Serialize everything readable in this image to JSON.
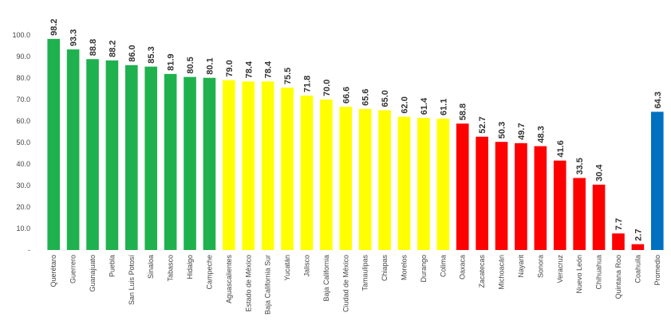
{
  "chart_data": {
    "type": "bar",
    "title": "",
    "xlabel": "",
    "ylabel": "",
    "ylim": [
      0,
      100
    ],
    "yticks": [
      0,
      10,
      20,
      30,
      40,
      50,
      60,
      70,
      80,
      90,
      100
    ],
    "ytick_labels": [
      "-",
      "10.0",
      "20.0",
      "30.0",
      "40.0",
      "50.0",
      "60.0",
      "70.0",
      "80.0",
      "90.0",
      "100.0"
    ],
    "grid": false,
    "legend": "none",
    "colors": {
      "green": "#1fb14e",
      "yellow": "#ffff00",
      "red": "#ff0000",
      "blue": "#0070c0"
    },
    "categories": [
      "Querétaro",
      "Guerrero",
      "Guanajuato",
      "Puebla",
      "San Luis Potosí",
      "Sinaloa",
      "Tabasco",
      "Hidalgo",
      "Campeche",
      "Aguascalientes",
      "Estado de México",
      "Baja California Sur",
      "Yucatán",
      "Jalisco",
      "Baja California",
      "Ciudad de México",
      "Tamaulipas",
      "Chiapas",
      "Morelos",
      "Durango",
      "Colima",
      "Oaxaca",
      "Zacatecas",
      "Michoacán",
      "Nayarit",
      "Sonora",
      "Veracruz",
      "Nuevo León",
      "Chihuahua",
      "Quintana Roo",
      "Coahuila",
      "Promedio"
    ],
    "values": [
      98.2,
      93.3,
      88.8,
      88.2,
      86.0,
      85.3,
      81.9,
      80.5,
      80.1,
      79.0,
      78.4,
      78.4,
      75.5,
      71.8,
      70.0,
      66.6,
      65.6,
      65.0,
      62.0,
      61.4,
      61.1,
      58.8,
      52.7,
      50.3,
      49.7,
      48.3,
      41.6,
      33.5,
      30.4,
      7.7,
      2.7,
      64.3
    ],
    "value_labels": [
      "98.2",
      "93.3",
      "88.8",
      "88.2",
      "86.0",
      "85.3",
      "81.9",
      "80.5",
      "80.1",
      "79.0",
      "78.4",
      "78.4",
      "75.5",
      "71.8",
      "70.0",
      "66.6",
      "65.6",
      "65.0",
      "62.0",
      "61.4",
      "61.1",
      "58.8",
      "52.7",
      "50.3",
      "49.7",
      "48.3",
      "41.6",
      "33.5",
      "30.4",
      "7.7",
      "2.7",
      "64.3"
    ],
    "bar_colors": [
      "green",
      "green",
      "green",
      "green",
      "green",
      "green",
      "green",
      "green",
      "green",
      "yellow",
      "yellow",
      "yellow",
      "yellow",
      "yellow",
      "yellow",
      "yellow",
      "yellow",
      "yellow",
      "yellow",
      "yellow",
      "yellow",
      "red",
      "red",
      "red",
      "red",
      "red",
      "red",
      "red",
      "red",
      "red",
      "red",
      "blue"
    ]
  }
}
